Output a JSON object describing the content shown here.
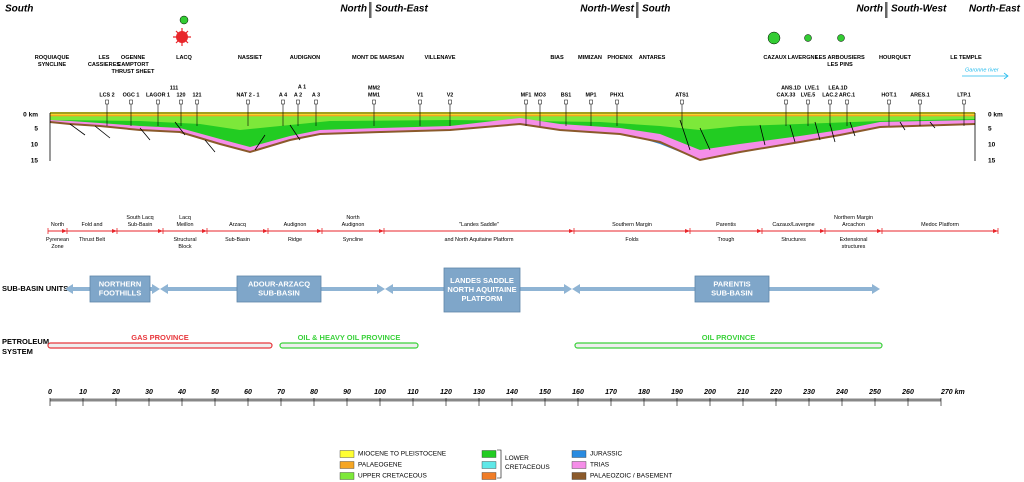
{
  "directions": [
    "South",
    "North",
    "South-East",
    "North-West",
    "South",
    "North",
    "South-West",
    "North-East"
  ],
  "localities": [
    [
      "ROQUIAQUE",
      "SYNCLINE"
    ],
    [
      "LES",
      "CASSIERES"
    ],
    [
      "OGENNE",
      "CAMPTORT",
      "THRUST SHEET"
    ],
    [
      "LACQ"
    ],
    [
      "NASSIET"
    ],
    [
      "AUDIGNON"
    ],
    [
      "MONT DE MARSAN"
    ],
    [
      "VILLENAVE"
    ],
    [
      "BIAS"
    ],
    [
      "MIMIZAN"
    ],
    [
      "PHOENIX"
    ],
    [
      "ANTARES"
    ],
    [
      "CAZAUX"
    ],
    [
      "LAVERGNE"
    ],
    [
      "LES ARBOUSIERS",
      "LES PINS"
    ],
    [
      "HOURQUET"
    ],
    [
      "LE TEMPLE"
    ]
  ],
  "river": "Garonne river",
  "wells": [
    "LCS 2",
    "OGC 1",
    "LAGOR 1",
    "111",
    "120",
    "121",
    "NAT 2 - 1",
    "A 4",
    "A 1",
    "A 2",
    "A 3",
    "MM2",
    "MM1",
    "V1",
    "V2",
    "MF1",
    "MO3",
    "BS1",
    "MP1",
    "PHX1",
    "ATS1",
    "ANS.1D",
    "CAX.33",
    "LVE.1",
    "LVE.5",
    "LEA.1D",
    "LAC.2",
    "ARC.1",
    "HOT.1",
    "ARES.1",
    "LTP.1"
  ],
  "depth_ticks": [
    "0 km",
    "5",
    "10",
    "15"
  ],
  "zones": [
    {
      "top": [
        "North"
      ],
      "bottom": [
        "Pyrenean",
        "Zone"
      ]
    },
    {
      "top": [
        "Fold and"
      ],
      "bottom": [
        "Thrust Belt"
      ]
    },
    {
      "top": [
        "South Lacq",
        "Sub-Basin"
      ]
    },
    {
      "top": [
        "Lacq",
        "Meillon"
      ],
      "bottom": [
        "Structural",
        "Block"
      ]
    },
    {
      "top": [
        "Arzacq"
      ],
      "bottom": [
        "Sub-Basin"
      ]
    },
    {
      "top": [
        "Audignon"
      ],
      "bottom": [
        "Ridge"
      ]
    },
    {
      "top": [
        "North",
        "Audignon"
      ],
      "bottom": [
        "Syncline"
      ]
    },
    {
      "top": [
        "\"Landes Saddle\""
      ],
      "bottom": [
        "and North Aquitaine Platform"
      ]
    },
    {
      "top": [
        "Southern Margin"
      ],
      "bottom": [
        "Folds"
      ]
    },
    {
      "top": [
        "Parentis"
      ],
      "bottom": [
        "Trough"
      ]
    },
    {
      "top": [
        "Cazaux/Lavergne"
      ],
      "bottom": [
        "Structures"
      ]
    },
    {
      "top": [
        "Northern Margin",
        "Arcachon"
      ],
      "bottom": [
        "Extensional",
        "structures"
      ]
    },
    {
      "top": [
        "Medoc Platform"
      ]
    }
  ],
  "sub_basin_units": {
    "label": "SUB-BASIN UNITS",
    "units": [
      [
        "NORTHERN",
        "FOOTHILLS"
      ],
      [
        "ADOUR-ARZACQ",
        "SUB-BASIN"
      ],
      [
        "LANDES SADDLE",
        "NORTH AQUITAINE",
        "PLATFORM"
      ],
      [
        "PARENTIS",
        "SUB-BASIN"
      ]
    ]
  },
  "petroleum_system": {
    "label": [
      "PETROLEUM",
      "SYSTEM"
    ],
    "provinces": [
      {
        "name": "GAS PROVINCE",
        "color": "#e8383d"
      },
      {
        "name": "OIL & HEAVY OIL PROVINCE",
        "color": "#3cd23c"
      },
      {
        "name": "OIL PROVINCE",
        "color": "#3cd23c"
      }
    ]
  },
  "distance_ticks": [
    0,
    10,
    20,
    30,
    40,
    50,
    60,
    70,
    80,
    90,
    100,
    110,
    120,
    130,
    140,
    150,
    160,
    170,
    180,
    190,
    200,
    210,
    220,
    230,
    240,
    250,
    260,
    {
      "value": 270,
      "label": "270 km"
    }
  ],
  "legend": {
    "items": [
      {
        "label": "MIOCENE TO PLEISTOCENE",
        "color": "#ffff33"
      },
      {
        "label": "PALAEOGENE",
        "color": "#f5a623"
      },
      {
        "label": "UPPER CRETACEOUS",
        "color": "#7de83a"
      },
      {
        "label": "JURASSIC",
        "color": "#2a8be0"
      },
      {
        "label": "TRIAS",
        "color": "#f58ee8"
      },
      {
        "label": "PALAEOZOIC / BASEMENT",
        "color": "#8b5a2b"
      }
    ],
    "group": {
      "label": [
        "LOWER",
        "CRETACEOUS"
      ],
      "colors": [
        "#22cc22",
        "#5fe8e8",
        "#f07d28"
      ]
    }
  }
}
